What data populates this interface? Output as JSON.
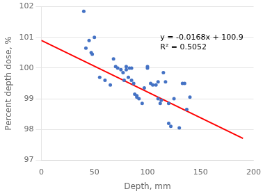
{
  "chart_data": {
    "type": "scatter",
    "xlabel": "Depth, mm",
    "ylabel": "Percent depth dose, %",
    "xlim": [
      0,
      200
    ],
    "ylim": [
      97,
      102
    ],
    "xticks": [
      0,
      50,
      100,
      150,
      200
    ],
    "yticks": [
      97,
      98,
      99,
      100,
      101,
      102
    ],
    "grid": "y",
    "series": [
      {
        "type": "scatter",
        "color": "#4472C4",
        "x": [
          40,
          42,
          45,
          47,
          48,
          50,
          55,
          60,
          65,
          68,
          70,
          72,
          75,
          77,
          78,
          80,
          80,
          82,
          83,
          85,
          85,
          87,
          88,
          90,
          90,
          92,
          95,
          97,
          100,
          100,
          103,
          105,
          108,
          110,
          110,
          112,
          113,
          115,
          117,
          120,
          120,
          122,
          125,
          130,
          133,
          135,
          137,
          140
        ],
        "values": [
          101.85,
          100.65,
          100.9,
          100.5,
          100.45,
          101.0,
          99.7,
          99.6,
          99.45,
          100.3,
          100.05,
          100.0,
          99.95,
          99.85,
          99.6,
          100.05,
          99.95,
          99.7,
          100.0,
          100.0,
          99.6,
          99.5,
          99.15,
          99.1,
          99.05,
          99.0,
          98.85,
          99.35,
          100.0,
          100.05,
          99.5,
          99.45,
          99.45,
          99.0,
          99.55,
          98.85,
          98.95,
          99.85,
          99.55,
          98.2,
          98.85,
          98.1,
          99.0,
          98.05,
          99.5,
          99.5,
          98.65,
          99.05
        ]
      },
      {
        "type": "line",
        "color": "#FF0000",
        "x": [
          0,
          190
        ],
        "values": [
          100.9,
          97.708
        ]
      }
    ],
    "annotations": [
      "y = -0.0168x + 100.9",
      "R² = 0.5052"
    ]
  }
}
